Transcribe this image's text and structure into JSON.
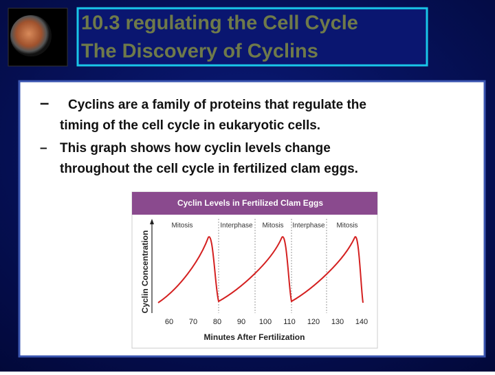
{
  "header": {
    "title": [
      "10.3 regulating the Cell Cycle",
      "The Discovery of Cyclins"
    ]
  },
  "bullets": [
    {
      "marker": "–",
      "lines": [
        "Cyclins are a family of proteins that regulate the",
        "timing of the cell cycle in eukaryotic cells."
      ]
    },
    {
      "marker": "–",
      "lines": [
        "This graph shows how cyclin levels change",
        "throughout the cell cycle in fertilized clam eggs."
      ]
    }
  ],
  "figure": {
    "title": "Cyclin Levels in Fertilized Clam Eggs",
    "phases": [
      "Mitosis",
      "Interphase",
      "Mitosis",
      "Interphase",
      "Mitosis"
    ],
    "y_label": "Cyclin Concentration",
    "x_label": "Minutes After Fertilization",
    "x_ticks": [
      "60",
      "70",
      "80",
      "90",
      "100",
      "110",
      "120",
      "130",
      "140"
    ]
  }
}
